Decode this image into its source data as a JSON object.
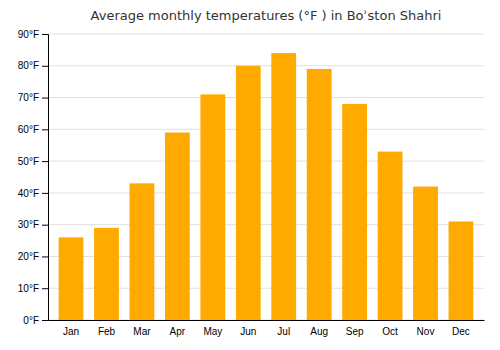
{
  "chart_data": {
    "type": "bar",
    "title": "Average monthly temperatures (°F ) in Boʾston Shahri",
    "categories": [
      "Jan",
      "Feb",
      "Mar",
      "Apr",
      "May",
      "Jun",
      "Jul",
      "Aug",
      "Sep",
      "Oct",
      "Nov",
      "Dec"
    ],
    "values": [
      26,
      29,
      43,
      59,
      71,
      80,
      84,
      79,
      68,
      53,
      42,
      31
    ],
    "color": "#FFAA00",
    "ylim": [
      0,
      90
    ],
    "yticks": [
      {
        "value": 0,
        "label": "0°F"
      },
      {
        "value": 10,
        "label": "10°F"
      },
      {
        "value": 20,
        "label": "20°F"
      },
      {
        "value": 30,
        "label": "30°F"
      },
      {
        "value": 40,
        "label": "40°F"
      },
      {
        "value": 50,
        "label": "50°F"
      },
      {
        "value": 60,
        "label": "60°F"
      },
      {
        "value": 70,
        "label": "70°F"
      },
      {
        "value": 80,
        "label": "80°F"
      },
      {
        "value": 90,
        "label": "90°F"
      }
    ],
    "grid": true
  }
}
